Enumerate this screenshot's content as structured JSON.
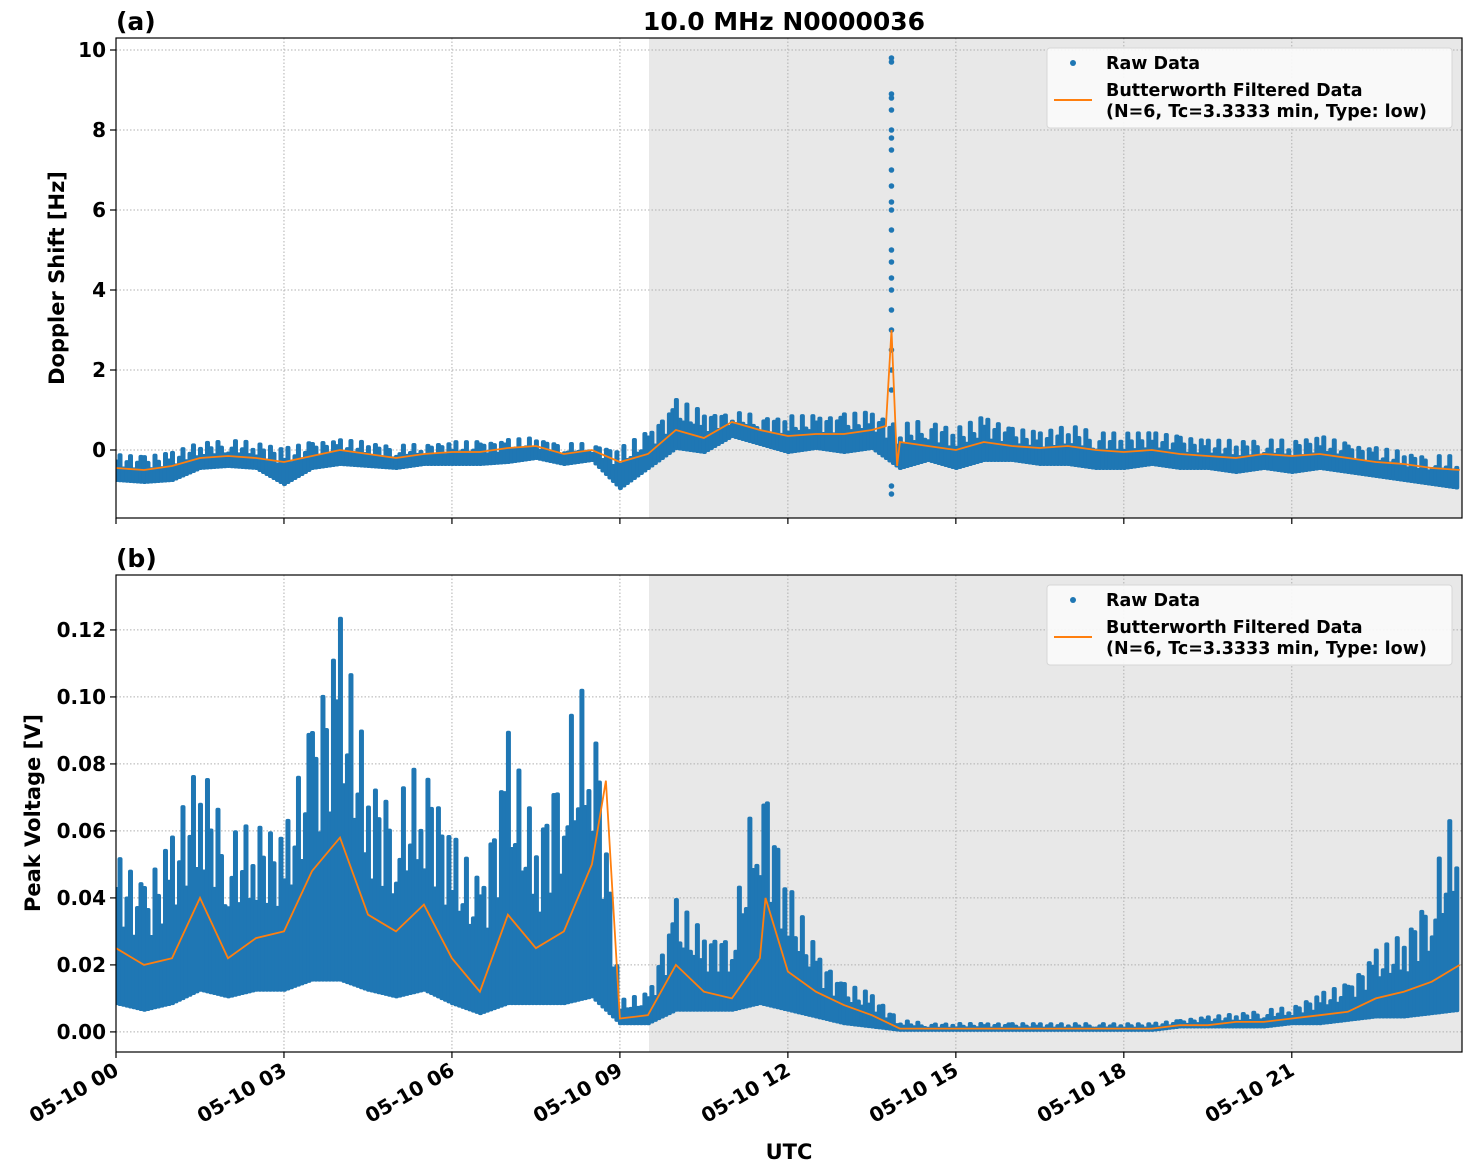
{
  "chart_data": [
    {
      "type": "scatter",
      "panel_label": "(a)",
      "title": "10.0 MHz N0000036",
      "xlabel": "",
      "ylabel": "Doppler Shift [Hz]",
      "xlim_hours": [
        0,
        24
      ],
      "ylim": [
        -1.7,
        10.3
      ],
      "yticks": [
        0,
        2,
        4,
        6,
        8,
        10
      ],
      "ytick_labels": [
        "0",
        "2",
        "4",
        "6",
        "8",
        "10"
      ],
      "grid": true,
      "legend_placement": "top-right",
      "shaded_span_hours": [
        9.52,
        24
      ],
      "x_hours": [
        0,
        0.5,
        1,
        1.5,
        2,
        2.5,
        3,
        3.5,
        4,
        4.5,
        5,
        5.5,
        6,
        6.5,
        7,
        7.5,
        8,
        8.5,
        9,
        9.5,
        10,
        10.5,
        11,
        11.5,
        12,
        12.5,
        13,
        13.5,
        14,
        14.5,
        15,
        15.5,
        16,
        16.5,
        17,
        17.5,
        18,
        18.5,
        19,
        19.5,
        20,
        20.5,
        21,
        21.5,
        22,
        22.5,
        23,
        23.5,
        24
      ],
      "series": [
        {
          "name": "Raw Data",
          "color": "#1f77b4",
          "kind": "points",
          "raw_low": [
            -0.8,
            -0.85,
            -0.8,
            -0.5,
            -0.45,
            -0.5,
            -0.9,
            -0.5,
            -0.4,
            -0.45,
            -0.5,
            -0.4,
            -0.4,
            -0.4,
            -0.35,
            -0.25,
            -0.4,
            -0.3,
            -1.0,
            -0.5,
            0.0,
            -0.1,
            0.3,
            0.1,
            -0.1,
            0.0,
            -0.1,
            0.0,
            -0.5,
            -0.3,
            -0.5,
            -0.3,
            -0.3,
            -0.4,
            -0.4,
            -0.5,
            -0.5,
            -0.4,
            -0.5,
            -0.5,
            -0.6,
            -0.5,
            -0.6,
            -0.5,
            -0.6,
            -0.7,
            -0.8,
            -0.9,
            -1.0
          ],
          "raw_high": [
            -0.05,
            -0.1,
            0.0,
            0.25,
            0.3,
            0.25,
            0.1,
            0.25,
            0.3,
            0.25,
            0.15,
            0.2,
            0.25,
            0.25,
            0.3,
            0.35,
            0.2,
            0.2,
            0.1,
            0.5,
            1.3,
            1.0,
            1.0,
            0.9,
            0.9,
            0.9,
            0.95,
            1.0,
            0.7,
            0.8,
            0.6,
            0.9,
            0.6,
            0.5,
            0.7,
            0.5,
            0.5,
            0.5,
            0.4,
            0.3,
            0.3,
            0.3,
            0.3,
            0.4,
            0.2,
            0.1,
            0.0,
            -0.1,
            -0.1
          ],
          "spike_x_hours": 13.85,
          "spike_values": [
            9.8,
            9.7,
            8.9,
            8.8,
            8.5,
            8.0,
            7.8,
            7.5,
            7.0,
            6.6,
            6.2,
            6.0,
            5.5,
            5.0,
            4.7,
            4.3,
            4.0,
            3.5,
            3.0,
            2.5,
            2.0,
            1.5,
            -0.9,
            -1.1
          ]
        },
        {
          "name": "Butterworth Filtered Data\n(N=6, Tc=3.3333 min, Type: low)",
          "color": "#ff7f0e",
          "kind": "line",
          "values": [
            -0.45,
            -0.5,
            -0.4,
            -0.2,
            -0.15,
            -0.2,
            -0.3,
            -0.15,
            0.0,
            -0.1,
            -0.2,
            -0.1,
            -0.05,
            -0.05,
            0.05,
            0.1,
            -0.1,
            0.0,
            -0.3,
            -0.1,
            0.5,
            0.3,
            0.7,
            0.5,
            0.35,
            0.4,
            0.4,
            0.5,
            0.2,
            0.1,
            0.0,
            0.2,
            0.1,
            0.05,
            0.1,
            0.0,
            -0.05,
            0.0,
            -0.1,
            -0.15,
            -0.2,
            -0.1,
            -0.15,
            -0.1,
            -0.2,
            -0.3,
            -0.35,
            -0.45,
            -0.5
          ],
          "extra_points": [
            [
              13.75,
              0.6
            ],
            [
              13.85,
              3.0
            ],
            [
              13.95,
              -0.4
            ]
          ]
        }
      ]
    },
    {
      "type": "scatter",
      "panel_label": "(b)",
      "title": "",
      "xlabel": "UTC",
      "ylabel": "Peak Voltage [V]",
      "xlim_hours": [
        0,
        24
      ],
      "ylim": [
        -0.006,
        0.1364
      ],
      "yticks": [
        0,
        0.02,
        0.04,
        0.06,
        0.08,
        0.1,
        0.12
      ],
      "ytick_labels": [
        "0.00",
        "0.02",
        "0.04",
        "0.06",
        "0.08",
        "0.10",
        "0.12"
      ],
      "xtick_hours": [
        0,
        3,
        6,
        9,
        12,
        15,
        18,
        21
      ],
      "xtick_labels": [
        "05-10 00",
        "05-10 03",
        "05-10 06",
        "05-10 09",
        "05-10 12",
        "05-10 15",
        "05-10 18",
        "05-10 21"
      ],
      "grid": true,
      "legend_placement": "top-right",
      "shaded_span_hours": [
        9.52,
        24
      ],
      "x_hours": [
        0,
        0.5,
        1,
        1.5,
        2,
        2.5,
        3,
        3.5,
        4,
        4.5,
        5,
        5.5,
        6,
        6.5,
        7,
        7.5,
        8,
        8.5,
        9,
        9.5,
        10,
        10.5,
        11,
        11.5,
        12,
        12.5,
        13,
        13.5,
        14,
        14.5,
        15,
        15.5,
        16,
        16.5,
        17,
        17.5,
        18,
        18.5,
        19,
        19.5,
        20,
        20.5,
        21,
        21.5,
        22,
        22.5,
        23,
        23.5,
        24
      ],
      "series": [
        {
          "name": "Raw Data",
          "color": "#1f77b4",
          "kind": "points",
          "raw_low": [
            0.008,
            0.006,
            0.008,
            0.012,
            0.01,
            0.012,
            0.012,
            0.015,
            0.015,
            0.012,
            0.01,
            0.012,
            0.008,
            0.005,
            0.008,
            0.008,
            0.008,
            0.01,
            0.002,
            0.002,
            0.006,
            0.006,
            0.006,
            0.008,
            0.006,
            0.004,
            0.002,
            0.001,
            0,
            0,
            0,
            0,
            0,
            0,
            0,
            0,
            0,
            0,
            0.001,
            0.001,
            0.001,
            0.001,
            0.002,
            0.002,
            0.003,
            0.004,
            0.004,
            0.005,
            0.006
          ],
          "raw_high": [
            0.055,
            0.045,
            0.06,
            0.085,
            0.06,
            0.065,
            0.06,
            0.095,
            0.125,
            0.08,
            0.07,
            0.085,
            0.06,
            0.045,
            0.09,
            0.06,
            0.09,
            0.11,
            0.01,
            0.012,
            0.04,
            0.03,
            0.03,
            0.085,
            0.045,
            0.025,
            0.015,
            0.012,
            0.004,
            0.003,
            0.003,
            0.003,
            0.003,
            0.003,
            0.003,
            0.003,
            0.003,
            0.003,
            0.004,
            0.005,
            0.006,
            0.007,
            0.008,
            0.012,
            0.015,
            0.025,
            0.03,
            0.045,
            0.075
          ]
        },
        {
          "name": "Butterworth Filtered Data\n(N=6, Tc=3.3333 min, Type: low)",
          "color": "#ff7f0e",
          "kind": "line",
          "values": [
            0.025,
            0.02,
            0.022,
            0.04,
            0.022,
            0.028,
            0.03,
            0.048,
            0.058,
            0.035,
            0.03,
            0.038,
            0.022,
            0.012,
            0.035,
            0.025,
            0.03,
            0.05,
            0.004,
            0.005,
            0.02,
            0.012,
            0.01,
            0.022,
            0.018,
            0.012,
            0.008,
            0.005,
            0.001,
            0.001,
            0.001,
            0.001,
            0.001,
            0.001,
            0.001,
            0.001,
            0.001,
            0.001,
            0.002,
            0.002,
            0.003,
            0.003,
            0.004,
            0.005,
            0.006,
            0.01,
            0.012,
            0.015,
            0.02
          ],
          "extra_points": [
            [
              8.75,
              0.075
            ],
            [
              11.6,
              0.04
            ]
          ]
        }
      ]
    }
  ]
}
